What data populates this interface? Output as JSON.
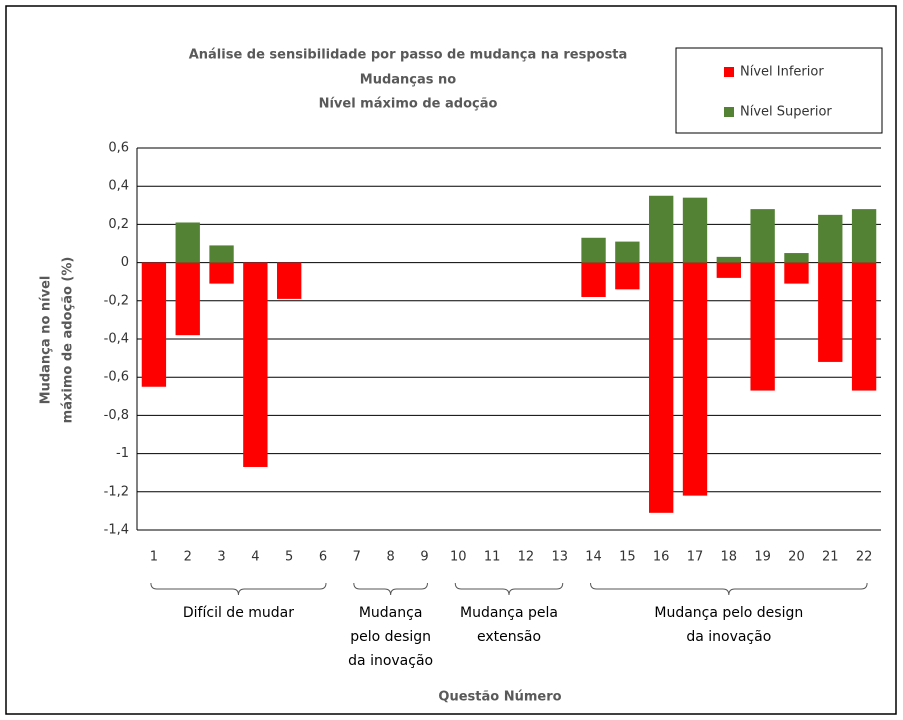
{
  "chart_data": {
    "type": "bar",
    "title": [
      "Análise de sensibilidade por passo de mudança na resposta",
      "Mudanças no",
      "Nível máximo de adoção"
    ],
    "y_label": [
      "Mudança no nível",
      "máximo de adoção (%)"
    ],
    "x_label": "Questão Número",
    "categories": [
      "1",
      "2",
      "3",
      "4",
      "5",
      "6",
      "7",
      "8",
      "9",
      "10",
      "11",
      "12",
      "13",
      "14",
      "15",
      "16",
      "17",
      "18",
      "19",
      "20",
      "21",
      "22"
    ],
    "series": [
      {
        "name": "Nível Inferior",
        "color": "#ff0000",
        "values": [
          -0.65,
          -0.38,
          -0.11,
          -1.07,
          -0.19,
          null,
          null,
          null,
          null,
          null,
          null,
          null,
          null,
          -0.18,
          -0.14,
          -1.31,
          -1.22,
          -0.08,
          -0.67,
          -0.11,
          -0.52,
          -0.67
        ]
      },
      {
        "name": "Nível Superior",
        "color": "#548235",
        "values": [
          0,
          0.21,
          0.09,
          0,
          0,
          null,
          null,
          null,
          null,
          null,
          null,
          null,
          null,
          0.13,
          0.11,
          0.35,
          0.34,
          0.03,
          0.28,
          0.05,
          0.25,
          0.28
        ]
      }
    ],
    "groups": [
      {
        "lines": [
          "Difícil de mudar"
        ],
        "first": 0,
        "last": 5
      },
      {
        "lines": [
          "Mudança",
          "pelo design",
          "da inovação"
        ],
        "first": 6,
        "last": 8
      },
      {
        "lines": [
          "Mudança pela",
          "extensão"
        ],
        "first": 9,
        "last": 12
      },
      {
        "lines": [
          "Mudança pelo design",
          "da inovação"
        ],
        "first": 13,
        "last": 21
      }
    ],
    "ylim": [
      -1.4,
      0.6
    ],
    "yticks": [
      {
        "value": -1.4,
        "label": "-1,4"
      },
      {
        "value": -1.2,
        "label": "-1,2"
      },
      -1,
      {
        "value": -0.8,
        "label": "-0,8"
      },
      {
        "value": -0.6,
        "label": "-0,6"
      },
      {
        "value": -0.4,
        "label": "-0,4"
      },
      {
        "value": -0.2,
        "label": "-0,2"
      },
      0,
      {
        "value": 0.2,
        "label": "0,2"
      },
      {
        "value": 0.4,
        "label": "0,4"
      },
      {
        "value": 0.6,
        "label": "0,6"
      }
    ],
    "grid": true
  }
}
